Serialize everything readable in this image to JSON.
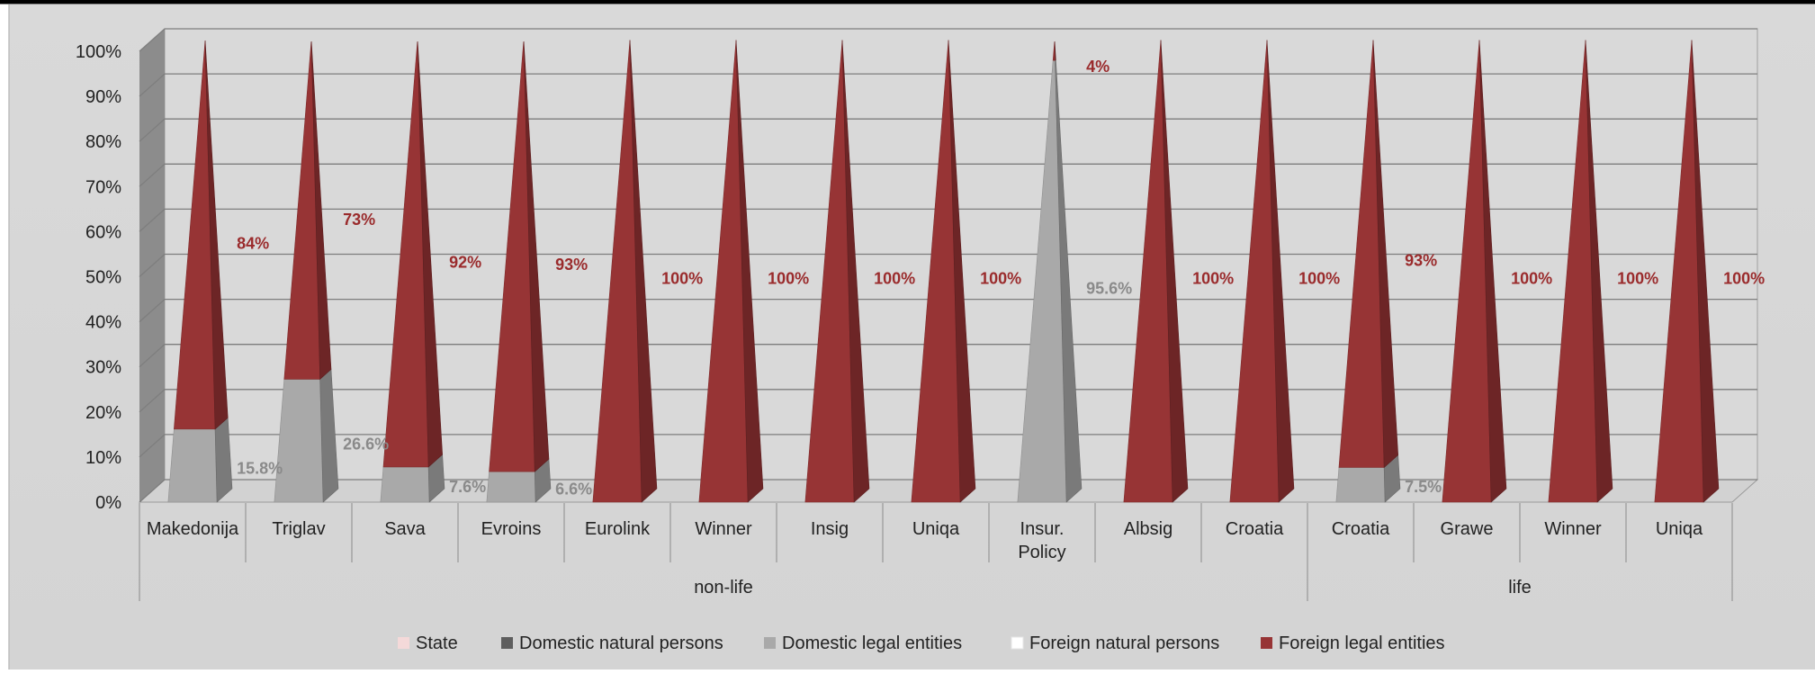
{
  "chart_data": {
    "type": "bar",
    "style": "3d-pyramid-stacked-100",
    "title": "",
    "xlabel": "",
    "ylabel": "",
    "ylim": [
      0,
      100
    ],
    "y_ticks": [
      "0%",
      "10%",
      "20%",
      "30%",
      "40%",
      "50%",
      "60%",
      "70%",
      "80%",
      "90%",
      "100%"
    ],
    "grid": true,
    "legend_position": "bottom",
    "categories": [
      "Makedonija",
      "Triglav",
      "Sava",
      "Evroins",
      "Eurolink",
      "Winner",
      "Insig",
      "Uniqa",
      "Insur. Policy",
      "Albsig",
      "Croatia",
      "Croatia",
      "Grawe",
      "Winner",
      "Uniqa"
    ],
    "groups": [
      {
        "label": "non-life",
        "start": 0,
        "end": 10
      },
      {
        "label": "life",
        "start": 11,
        "end": 14
      }
    ],
    "series": [
      {
        "name": "State",
        "color": "#f4d9d9",
        "values": [
          0,
          0,
          0,
          0,
          0,
          0,
          0,
          0,
          0,
          0,
          0,
          0,
          0,
          0,
          0
        ],
        "labels": [
          "",
          "",
          "",
          "",
          "",
          "",
          "",
          "",
          "",
          "",
          "",
          "",
          "",
          "",
          ""
        ]
      },
      {
        "name": "Domestic natural persons",
        "color": "#5e5e5e",
        "values": [
          0,
          0,
          0,
          0,
          0,
          0,
          0,
          0,
          0,
          0,
          0,
          0,
          0,
          0,
          0
        ],
        "labels": [
          "",
          "",
          "",
          "",
          "",
          "",
          "",
          "",
          "",
          "",
          "",
          "",
          "",
          "",
          ""
        ]
      },
      {
        "name": "Domestic legal entities",
        "color": "#a9a9a9",
        "values": [
          15.8,
          26.6,
          7.6,
          6.6,
          0,
          0,
          0,
          0,
          95.6,
          0,
          0,
          7.5,
          0,
          0,
          0
        ],
        "labels": [
          "15.8%",
          "26.6%",
          "7.6%",
          "6.6%",
          "",
          "",
          "",
          "",
          "95.6%",
          "",
          "",
          "7.5%",
          "",
          "",
          ""
        ]
      },
      {
        "name": "Foreign natural persons",
        "color": "#ffffff",
        "values": [
          0,
          0,
          0,
          0,
          0,
          0,
          0,
          0,
          0,
          0,
          0,
          0,
          0,
          0,
          0
        ],
        "labels": [
          "",
          "",
          "",
          "",
          "",
          "",
          "",
          "",
          "",
          "",
          "",
          "",
          "",
          "",
          ""
        ]
      },
      {
        "name": "Foreign legal entities",
        "color": "#973435",
        "values": [
          84,
          73,
          92,
          93,
          100,
          100,
          100,
          100,
          4,
          100,
          100,
          93,
          100,
          100,
          100
        ],
        "labels": [
          "84%",
          "73%",
          "92%",
          "93%",
          "100%",
          "100%",
          "100%",
          "100%",
          "4%",
          "100%",
          "100%",
          "93%",
          "100%",
          "100%",
          "100%"
        ]
      }
    ]
  }
}
